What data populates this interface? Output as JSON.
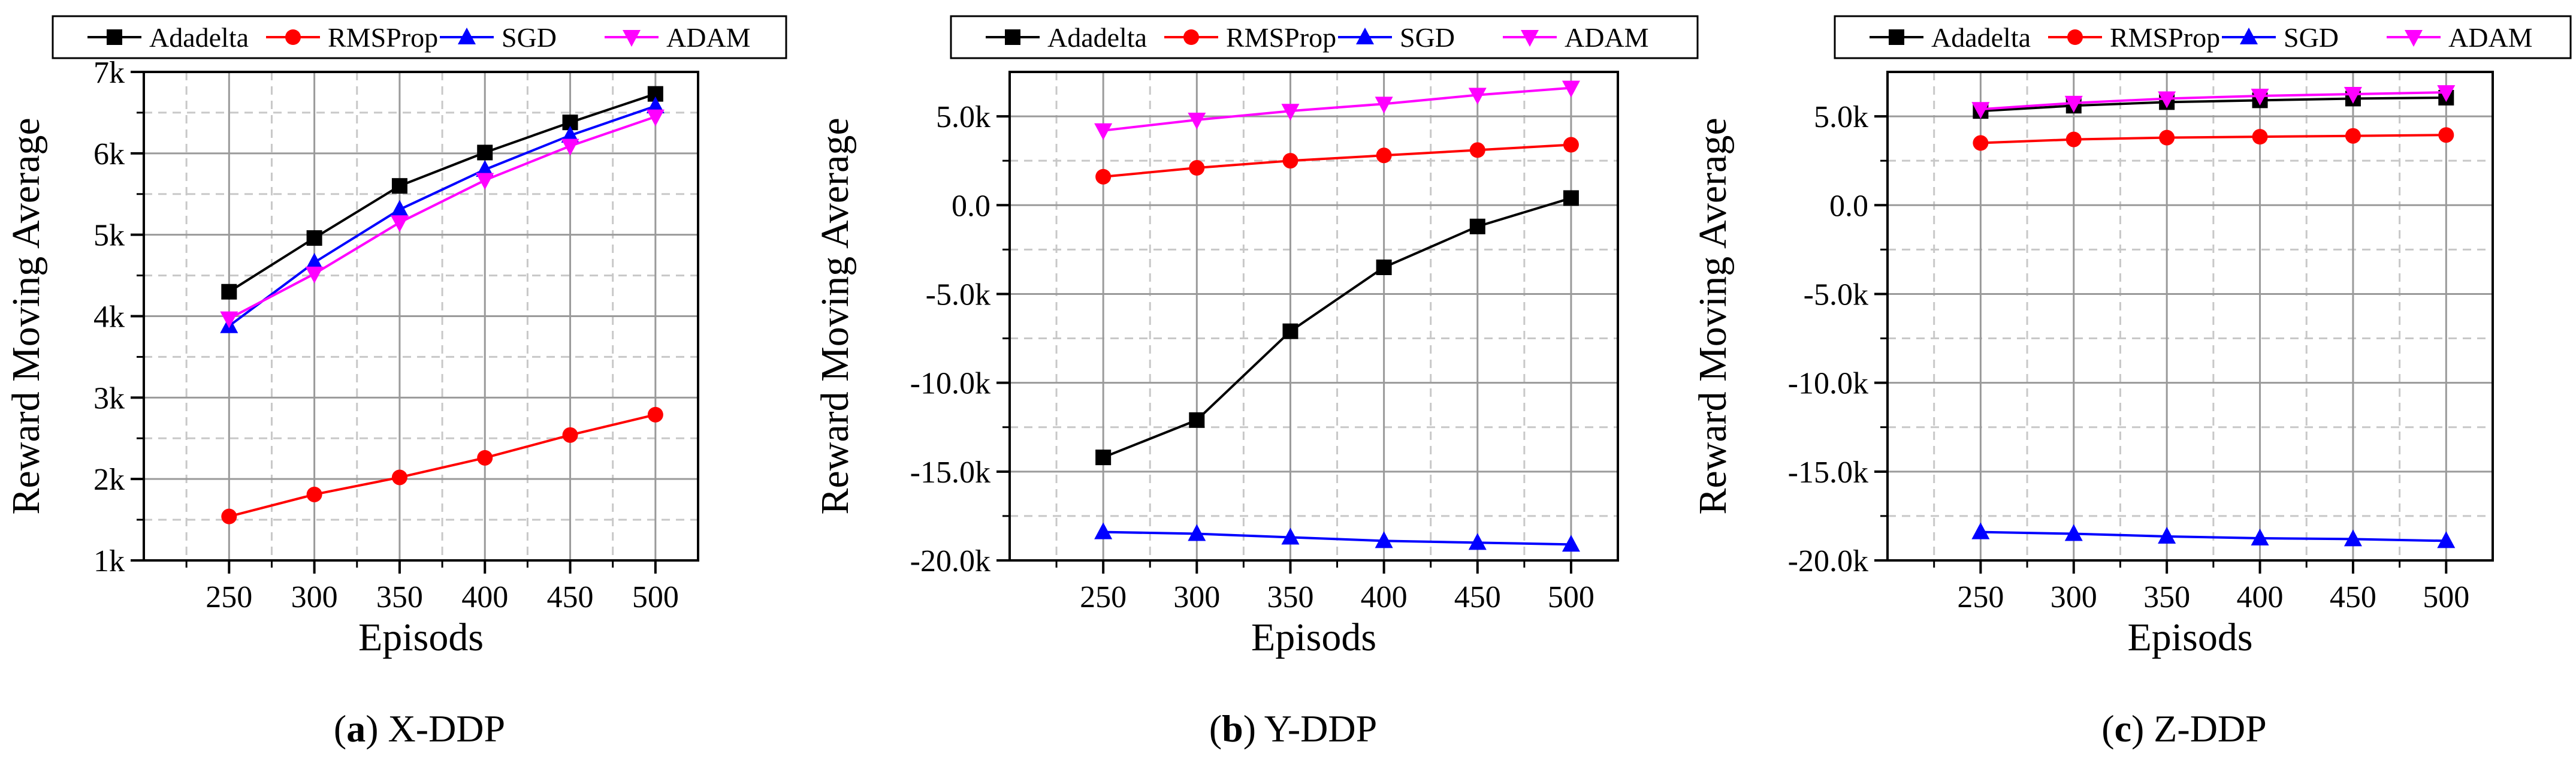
{
  "chart_data": [
    {
      "type": "line",
      "title": "",
      "caption_letter": "(a)",
      "caption_text": "X-DDP",
      "xlabel": "Episods",
      "ylabel": "Reward Moving Average",
      "x": [
        250,
        300,
        350,
        400,
        450,
        500
      ],
      "x_ticks": [
        "250",
        "300",
        "350",
        "400",
        "450",
        "500"
      ],
      "xlim": [
        200,
        525
      ],
      "y_ticks": [
        {
          "value": 1000,
          "label": "1k"
        },
        {
          "value": 2000,
          "label": "2k"
        },
        {
          "value": 3000,
          "label": "3k"
        },
        {
          "value": 4000,
          "label": "4k"
        },
        {
          "value": 5000,
          "label": "5k"
        },
        {
          "value": 6000,
          "label": "6k"
        },
        {
          "value": 7000,
          "label": "7k"
        }
      ],
      "ylim": [
        1000,
        7000
      ],
      "grid": true,
      "legend_position": "top",
      "series": [
        {
          "name": "Adadelta",
          "color": "#000000",
          "marker": "square",
          "values": [
            4300,
            4960,
            5600,
            6010,
            6380,
            6730
          ]
        },
        {
          "name": "RMSProp",
          "color": "#ff0000",
          "marker": "circle",
          "values": [
            1540,
            1810,
            2020,
            2260,
            2540,
            2790
          ]
        },
        {
          "name": "SGD",
          "color": "#0000ff",
          "marker": "triangle-up",
          "values": [
            3880,
            4660,
            5310,
            5800,
            6220,
            6580
          ]
        },
        {
          "name": "ADAM",
          "color": "#ff00ff",
          "marker": "triangle-down",
          "values": [
            3970,
            4520,
            5150,
            5670,
            6090,
            6450
          ]
        }
      ]
    },
    {
      "type": "line",
      "title": "",
      "caption_letter": "(b)",
      "caption_text": "Y-DDP",
      "xlabel": "Episods",
      "ylabel": "Reward Moving Average",
      "x": [
        250,
        300,
        350,
        400,
        450,
        500
      ],
      "x_ticks": [
        "250",
        "300",
        "350",
        "400",
        "450",
        "500"
      ],
      "xlim": [
        200,
        525
      ],
      "y_ticks": [
        {
          "value": -20000,
          "label": "-20.0k"
        },
        {
          "value": -15000,
          "label": "-15.0k"
        },
        {
          "value": -10000,
          "label": "-10.0k"
        },
        {
          "value": -5000,
          "label": "-5.0k"
        },
        {
          "value": 0,
          "label": "0.0"
        },
        {
          "value": 5000,
          "label": "5.0k"
        }
      ],
      "ylim": [
        -20000,
        7500
      ],
      "grid": true,
      "legend_position": "top",
      "series": [
        {
          "name": "Adadelta",
          "color": "#000000",
          "marker": "square",
          "values": [
            -14200,
            -12100,
            -7100,
            -3500,
            -1200,
            400
          ]
        },
        {
          "name": "RMSProp",
          "color": "#ff0000",
          "marker": "circle",
          "values": [
            1600,
            2100,
            2500,
            2800,
            3100,
            3400
          ]
        },
        {
          "name": "SGD",
          "color": "#0000ff",
          "marker": "triangle-up",
          "values": [
            -18400,
            -18500,
            -18700,
            -18900,
            -19000,
            -19100
          ]
        },
        {
          "name": "ADAM",
          "color": "#ff00ff",
          "marker": "triangle-down",
          "values": [
            4200,
            4800,
            5300,
            5700,
            6200,
            6600
          ]
        }
      ]
    },
    {
      "type": "line",
      "title": "",
      "caption_letter": "(c)",
      "caption_text": "Z-DDP",
      "xlabel": "Episods",
      "ylabel": "Reward Moving Average",
      "x": [
        250,
        300,
        350,
        400,
        450,
        500
      ],
      "x_ticks": [
        "250",
        "300",
        "350",
        "400",
        "450",
        "500"
      ],
      "xlim": [
        200,
        525
      ],
      "y_ticks": [
        {
          "value": -20000,
          "label": "-20.0k"
        },
        {
          "value": -15000,
          "label": "-15.0k"
        },
        {
          "value": -10000,
          "label": "-10.0k"
        },
        {
          "value": -5000,
          "label": "-5.0k"
        },
        {
          "value": 0,
          "label": "0.0"
        },
        {
          "value": 5000,
          "label": "5.0k"
        }
      ],
      "ylim": [
        -20000,
        7500
      ],
      "grid": true,
      "legend_position": "top",
      "series": [
        {
          "name": "Adadelta",
          "color": "#000000",
          "marker": "square",
          "values": [
            5300,
            5600,
            5800,
            5900,
            6000,
            6050
          ]
        },
        {
          "name": "RMSProp",
          "color": "#ff0000",
          "marker": "circle",
          "values": [
            3500,
            3700,
            3800,
            3850,
            3900,
            3950
          ]
        },
        {
          "name": "SGD",
          "color": "#0000ff",
          "marker": "triangle-up",
          "values": [
            -18400,
            -18500,
            -18650,
            -18750,
            -18800,
            -18900
          ]
        },
        {
          "name": "ADAM",
          "color": "#ff00ff",
          "marker": "triangle-down",
          "values": [
            5400,
            5750,
            6000,
            6150,
            6250,
            6350
          ]
        }
      ]
    }
  ]
}
